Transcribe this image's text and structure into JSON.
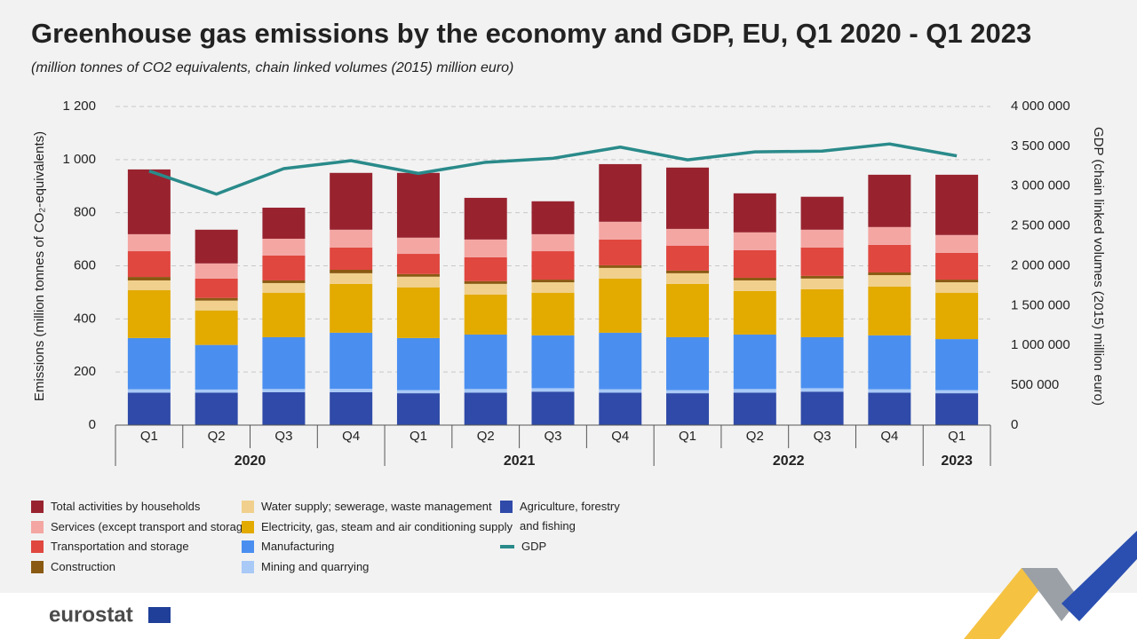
{
  "chart_data": {
    "type": "bar",
    "title": "Greenhouse gas emissions by the economy and GDP, EU, Q1 2020 - Q1 2023",
    "subtitle": "(million tonnes of CO2 equivalents, chain linked volumes (2015) million euro)",
    "ylabel": "Emissions (million tonnes of CO₂-equivalents)",
    "y2label": "GDP (chain linked volumes (2015) million euro)",
    "groups": [
      {
        "label": "2020",
        "categories": [
          "Q1",
          "Q2",
          "Q3",
          "Q4"
        ]
      },
      {
        "label": "2021",
        "categories": [
          "Q1",
          "Q2",
          "Q3",
          "Q4"
        ]
      },
      {
        "label": "2022",
        "categories": [
          "Q1",
          "Q2",
          "Q3",
          "Q4"
        ]
      },
      {
        "label": "2023",
        "categories": [
          "Q1"
        ]
      }
    ],
    "stacked": true,
    "ylim": [
      0,
      1200
    ],
    "yticks": [
      0,
      200,
      400,
      600,
      800,
      {
        "value": 1000,
        "label": "1 000"
      },
      {
        "value": 1200,
        "label": "1 200"
      }
    ],
    "y2lim": [
      0,
      4000000
    ],
    "y2ticks": [
      0,
      {
        "value": 500000,
        "label": "500 000"
      },
      {
        "value": 1000000,
        "label": "1 000 000"
      },
      {
        "value": 1500000,
        "label": "1 500 000"
      },
      {
        "value": 2000000,
        "label": "2 000 000"
      },
      {
        "value": 2500000,
        "label": "2 500 000"
      },
      {
        "value": 3000000,
        "label": "3 000 000"
      },
      {
        "value": 3500000,
        "label": "3 500 000"
      },
      {
        "value": 4000000,
        "label": "4 000 000"
      }
    ],
    "grid": true,
    "series": [
      {
        "name": "Agriculture, forestry and fishing",
        "color": "#2f4aa8",
        "values": [
          122,
          122,
          124,
          124,
          120,
          122,
          126,
          122,
          120,
          122,
          126,
          122,
          120
        ]
      },
      {
        "name": "Mining and quarrying",
        "color": "#a9c9f7",
        "values": [
          13,
          12,
          12,
          13,
          12,
          14,
          13,
          13,
          12,
          14,
          13,
          13,
          12
        ]
      },
      {
        "name": "Manufacturing",
        "color": "#4a8ff0",
        "values": [
          193,
          168,
          195,
          211,
          196,
          205,
          199,
          213,
          199,
          205,
          192,
          203,
          192
        ]
      },
      {
        "name": "Electricity, gas, steam and air conditioning supply",
        "color": "#e3aa00",
        "values": [
          180,
          130,
          167,
          184,
          191,
          151,
          160,
          204,
          201,
          164,
          181,
          184,
          174
        ]
      },
      {
        "name": "Water supply; sewerage, waste management",
        "color": "#f0d08c",
        "values": [
          37,
          37,
          37,
          40,
          40,
          40,
          40,
          40,
          40,
          40,
          40,
          43,
          40
        ]
      },
      {
        "name": "Construction",
        "color": "#8a5a12",
        "values": [
          13,
          10,
          10,
          13,
          10,
          10,
          10,
          10,
          10,
          10,
          10,
          10,
          10
        ]
      },
      {
        "name": "Transportation and storage",
        "color": "#e0473f",
        "values": [
          97,
          73,
          94,
          84,
          76,
          90,
          107,
          97,
          94,
          104,
          107,
          104,
          101
        ]
      },
      {
        "name": "Services (except transport and storage)",
        "color": "#f4a6a3",
        "values": [
          64,
          57,
          63,
          67,
          61,
          67,
          64,
          67,
          63,
          67,
          67,
          67,
          67
        ]
      },
      {
        "name": "Total activities by households",
        "color": "#98232f",
        "values": [
          244,
          127,
          117,
          214,
          244,
          157,
          124,
          217,
          231,
          147,
          124,
          197,
          227
        ]
      },
      {
        "name": "GDP",
        "type": "line",
        "axis": "y2",
        "color": "#2a8a8a",
        "values": [
          3190000,
          2900000,
          3220000,
          3320000,
          3160000,
          3300000,
          3350000,
          3490000,
          3330000,
          3430000,
          3440000,
          3530000,
          3380000
        ]
      }
    ]
  },
  "logo": "eurostat"
}
